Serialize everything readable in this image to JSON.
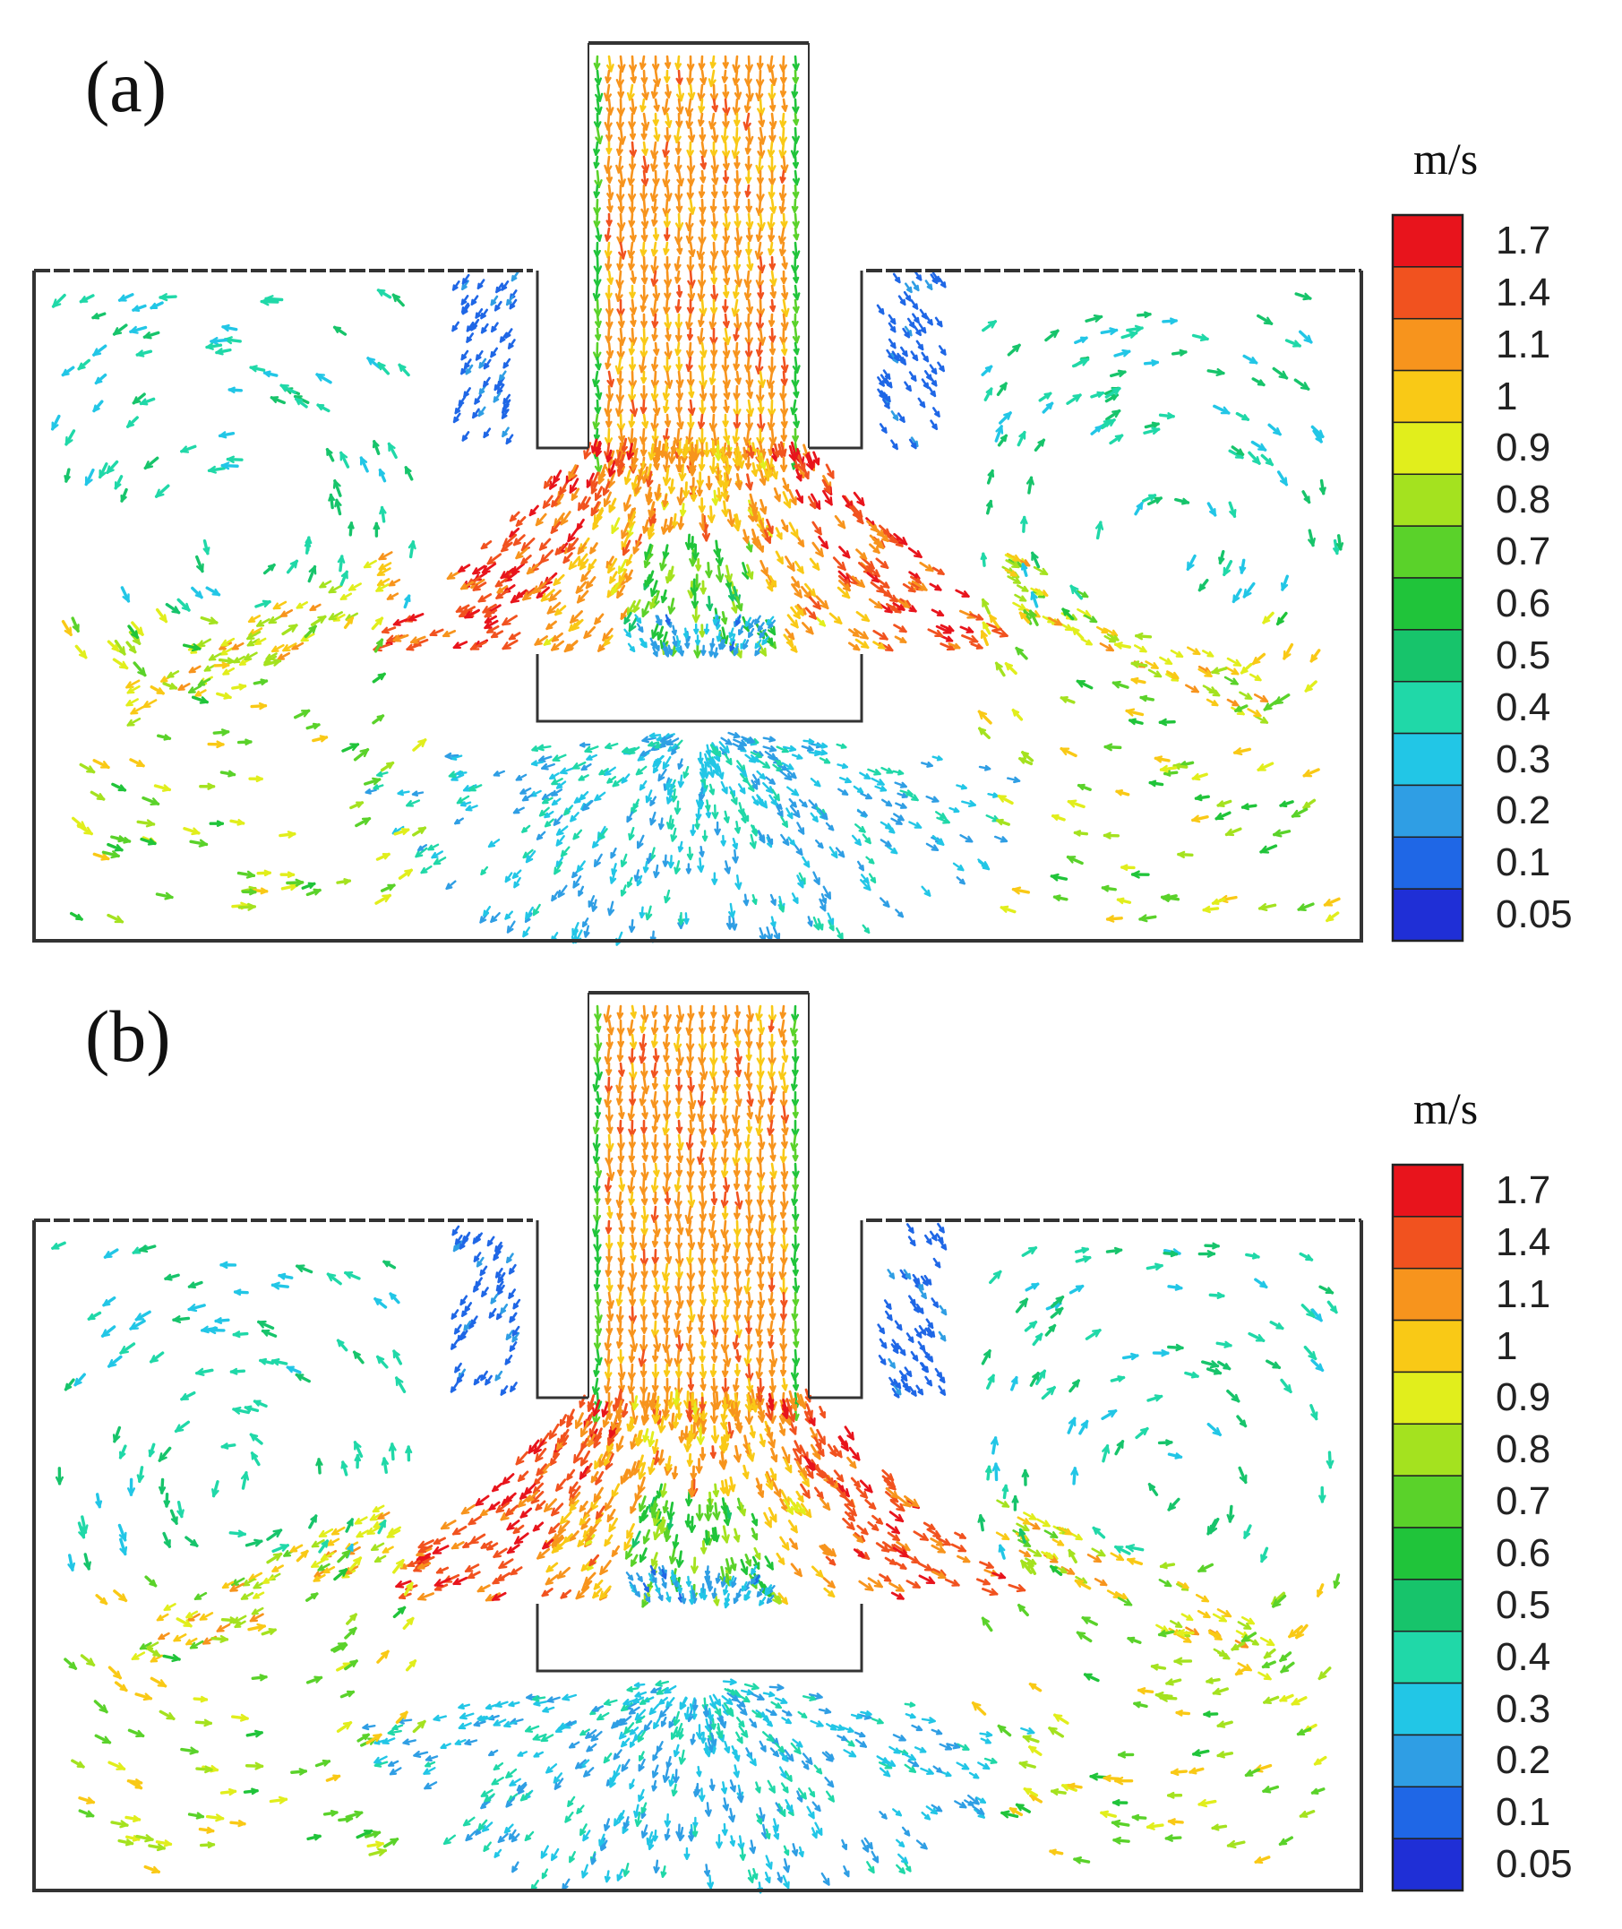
{
  "panels": [
    {
      "label": "(a)",
      "unit": "m/s"
    },
    {
      "label": "(b)",
      "unit": "m/s"
    }
  ],
  "colorbar": {
    "ticks": [
      "1.7",
      "1.4",
      "1.1",
      "1",
      "0.9",
      "0.8",
      "0.7",
      "0.6",
      "0.5",
      "0.4",
      "0.3",
      "0.2",
      "0.1",
      "0.05"
    ],
    "colors": [
      "#e8141c",
      "#f1521f",
      "#f7941d",
      "#f9c916",
      "#e1ee1c",
      "#a4e21f",
      "#5ad22a",
      "#20c43a",
      "#17c46b",
      "#20d8a8",
      "#22c6e6",
      "#2f9ee4",
      "#1f67e6",
      "#1f2fd6"
    ]
  }
}
